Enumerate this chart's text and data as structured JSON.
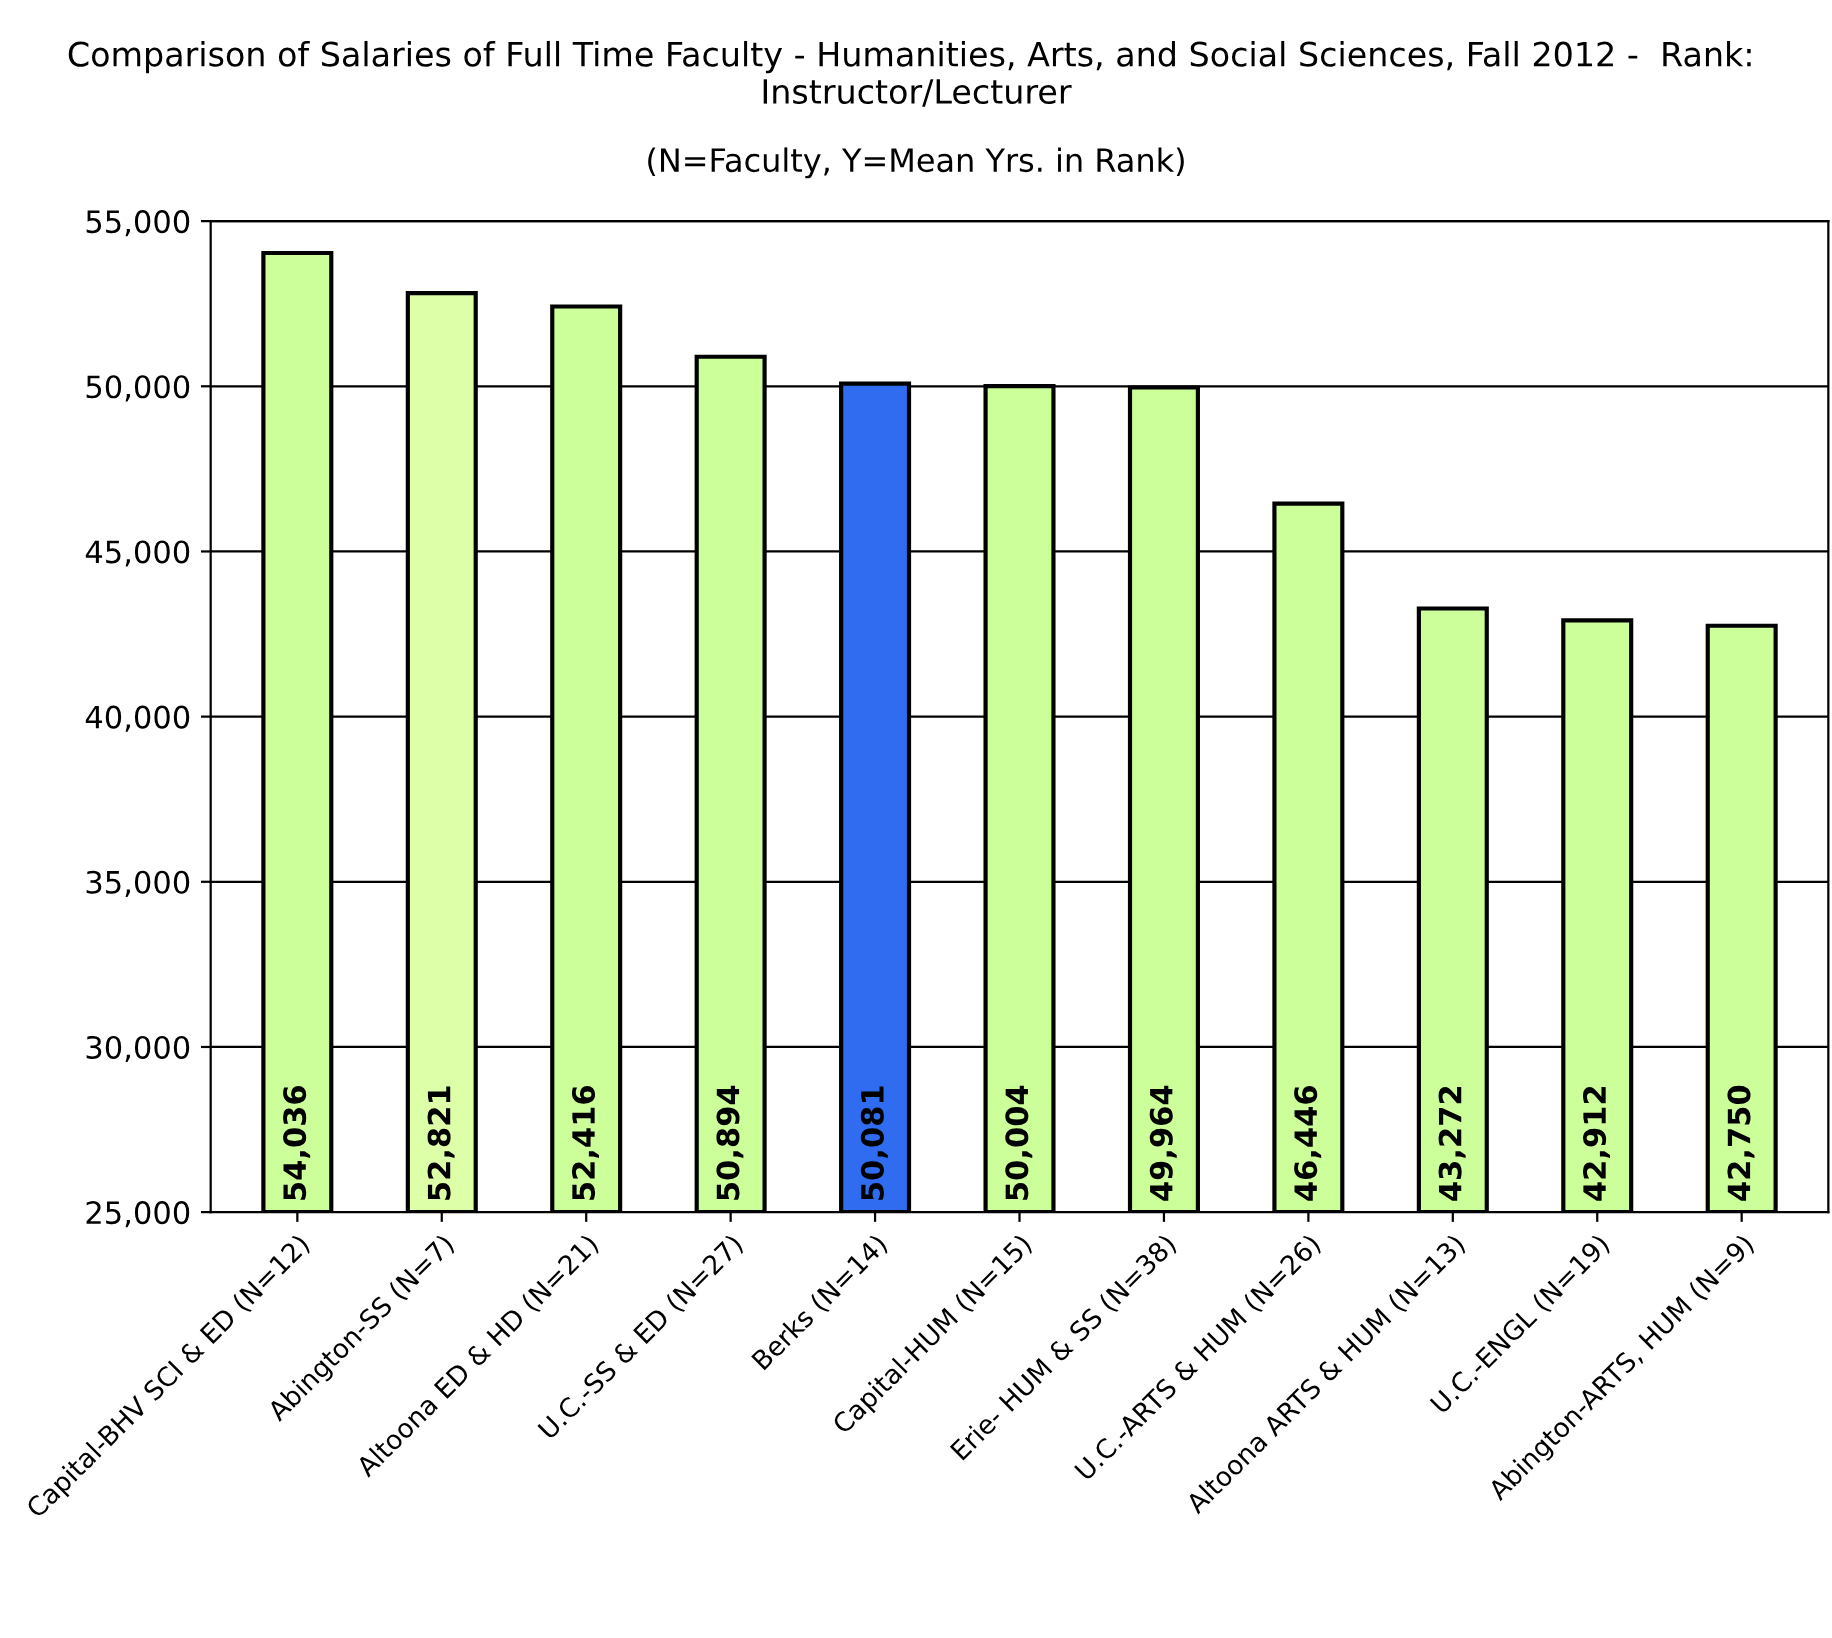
{
  "chart_data": {
    "type": "bar",
    "title": "Comparison of Salaries of Full Time Faculty - Humanities, Arts, and Social Sciences, Fall 2012 -  Rank:  Instructor/Lecturer",
    "subtitle": "(N=Faculty, Y=Mean Yrs. in Rank)",
    "categories": [
      "Capital-BHV SCI & ED (N=12)",
      "Abington-SS (N=7)",
      "Altoona ED & HD (N=21)",
      "U.C.-SS & ED (N=27)",
      "Berks (N=14)",
      "Capital-HUM (N=15)",
      "Erie- HUM & SS (N=38)",
      "U.C.-ARTS & HUM (N=26)",
      "Altoona ARTS & HUM (N=13)",
      "U.C.-ENGL (N=19)",
      "Abington-ARTS, HUM (N=9)"
    ],
    "values": [
      54036,
      52821,
      52416,
      50894,
      50081,
      50004,
      49964,
      46446,
      43272,
      42912,
      42750
    ],
    "value_labels": [
      "54,036",
      "52,821",
      "52,416",
      "50,894",
      "50,081",
      "50,004",
      "49,964",
      "46,446",
      "43,272",
      "42,912",
      "42,750"
    ],
    "colors": [
      "#ccff99",
      "#ddffa8",
      "#ccff99",
      "#ccff99",
      "#2f6cf0",
      "#ccff99",
      "#ccff99",
      "#ccff99",
      "#ccff99",
      "#ccff99",
      "#ccff99"
    ],
    "ylim": [
      25000,
      55000
    ],
    "yticks": [
      {
        "value": 25000,
        "label": "25,000"
      },
      {
        "value": 30000,
        "label": "30,000"
      },
      {
        "value": 35000,
        "label": "35,000"
      },
      {
        "value": 40000,
        "label": "40,000"
      },
      {
        "value": 45000,
        "label": "45,000"
      },
      {
        "value": 50000,
        "label": "50,000"
      },
      {
        "value": 55000,
        "label": "55,000"
      }
    ],
    "grid": "y"
  }
}
